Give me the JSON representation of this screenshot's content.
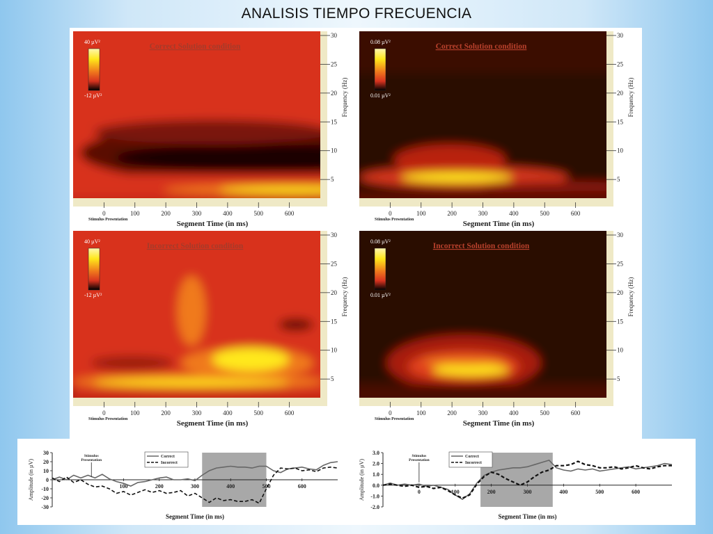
{
  "title": "ANALISIS TIEMPO FRECUENCIA",
  "colors": {
    "heat_dark": "#1a0500",
    "heat_red": "#d8331f",
    "heat_orange": "#f07a1c",
    "heat_yellow": "#ffe81a",
    "erp_shade": "#a8a8a8",
    "line": "#222222"
  },
  "chart_data": [
    {
      "type": "heatmap",
      "title": "Correct Solution condition",
      "xlabel": "Segment Time (in ms)",
      "ylabel": "Frequency (Hz)",
      "x_ticks": [
        "0",
        "100",
        "200",
        "300",
        "400",
        "500",
        "600"
      ],
      "y_ticks": [
        "30",
        "25",
        "20",
        "15",
        "10",
        "5"
      ],
      "xlim": [
        -100,
        700
      ],
      "ylim": [
        2,
        30
      ],
      "stimulus_label": "Stimulus Presentation",
      "colorbar": {
        "max": "40 µV²",
        "min": "-12 µV²"
      }
    },
    {
      "type": "heatmap",
      "title": "Correct Solution condition",
      "xlabel": "Segment Time (in ms)",
      "ylabel": "Frequency (Hz)",
      "x_ticks": [
        "0",
        "100",
        "200",
        "300",
        "400",
        "500",
        "600"
      ],
      "y_ticks": [
        "30",
        "25",
        "20",
        "15",
        "10",
        "5"
      ],
      "xlim": [
        -100,
        700
      ],
      "ylim": [
        2,
        30
      ],
      "stimulus_label": "Stimulus Presentation",
      "colorbar": {
        "max": "0.08 µV²",
        "min": "0.01 µV²"
      }
    },
    {
      "type": "heatmap",
      "title": "Incorrect Solution condition",
      "xlabel": "Segment Time (in ms)",
      "ylabel": "Frequency (Hz)",
      "x_ticks": [
        "0",
        "100",
        "200",
        "300",
        "400",
        "500",
        "600"
      ],
      "y_ticks": [
        "30",
        "25",
        "20",
        "15",
        "10",
        "5"
      ],
      "xlim": [
        -100,
        700
      ],
      "ylim": [
        2,
        30
      ],
      "stimulus_label": "Stimulus Presentation",
      "colorbar": {
        "max": "40 µV²",
        "min": "-12 µV²"
      }
    },
    {
      "type": "heatmap",
      "title": "Incorrect Solution condition",
      "xlabel": "Segment Time (in ms)",
      "ylabel": "Frequency (Hz)",
      "x_ticks": [
        "0",
        "100",
        "200",
        "300",
        "400",
        "500",
        "600"
      ],
      "y_ticks": [
        "30",
        "25",
        "20",
        "15",
        "10",
        "5"
      ],
      "xlim": [
        -100,
        700
      ],
      "ylim": [
        2,
        30
      ],
      "stimulus_label": "Stimulus Presentation",
      "colorbar": {
        "max": "0.08 µV²",
        "min": "0.01 µV²"
      }
    },
    {
      "type": "line",
      "xlabel": "Segment Time (in ms)",
      "ylabel": "Amplitude (in µV)",
      "xlim": [
        -100,
        700
      ],
      "ylim": [
        -30,
        30
      ],
      "y_ticks": [
        "30",
        "20",
        "10",
        "0",
        "-10",
        "-20",
        "-30"
      ],
      "x_tick_labels": [
        {
          "x": 100,
          "label": "100"
        },
        {
          "x": 200,
          "label": "200"
        },
        {
          "x": 300,
          "label": "300"
        },
        {
          "x": 400,
          "label": "400"
        },
        {
          "x": 500,
          "label": "500"
        },
        {
          "x": 600,
          "label": "600"
        }
      ],
      "shaded_range": [
        320,
        500
      ],
      "stimulus_label": "Stimulus Presentation",
      "series": [
        {
          "name": "Correct",
          "style": "solid",
          "x": [
            -100,
            -80,
            -60,
            -40,
            -20,
            0,
            20,
            40,
            60,
            80,
            100,
            120,
            140,
            160,
            180,
            200,
            220,
            240,
            260,
            280,
            300,
            320,
            340,
            360,
            380,
            400,
            420,
            440,
            460,
            480,
            500,
            520,
            540,
            560,
            580,
            600,
            620,
            640,
            660,
            680,
            700
          ],
          "y": [
            0,
            3,
            0,
            5,
            2,
            5,
            2,
            6,
            1,
            -2,
            -4,
            -7,
            -3,
            -2,
            0,
            2,
            3,
            0,
            0,
            1,
            -1,
            5,
            10,
            13,
            14,
            15,
            14,
            14,
            13,
            15,
            15,
            10,
            8,
            12,
            13,
            14,
            12,
            11,
            16,
            19,
            20
          ]
        },
        {
          "name": "Incorrect",
          "style": "dashed",
          "x": [
            -100,
            -80,
            -60,
            -40,
            -20,
            0,
            20,
            40,
            60,
            80,
            100,
            120,
            140,
            160,
            180,
            200,
            220,
            240,
            260,
            280,
            300,
            320,
            340,
            360,
            380,
            400,
            420,
            440,
            460,
            480,
            500,
            520,
            540,
            560,
            580,
            600,
            620,
            640,
            660,
            680,
            700
          ],
          "y": [
            2,
            -2,
            3,
            -3,
            0,
            -5,
            -8,
            -7,
            -10,
            -15,
            -13,
            -17,
            -14,
            -11,
            -14,
            -12,
            -15,
            -14,
            -12,
            -18,
            -15,
            -20,
            -25,
            -20,
            -23,
            -22,
            -24,
            -24,
            -22,
            -26,
            -10,
            5,
            13,
            12,
            13,
            10,
            11,
            9,
            13,
            14,
            13
          ]
        }
      ]
    },
    {
      "type": "line",
      "xlabel": "Segment Time (in ms)",
      "ylabel": "Amplitude (in µV)",
      "xlim": [
        -100,
        700
      ],
      "ylim": [
        -2,
        3
      ],
      "y_ticks": [
        "3.0",
        "2.0",
        "1.0",
        "0.0",
        "-1.0",
        "-2.0"
      ],
      "x_tick_labels": [
        {
          "x": 0,
          "label": "0"
        },
        {
          "x": 100,
          "label": "100"
        },
        {
          "x": 200,
          "label": "200"
        },
        {
          "x": 300,
          "label": "300"
        },
        {
          "x": 400,
          "label": "400"
        },
        {
          "x": 500,
          "label": "500"
        },
        {
          "x": 600,
          "label": "600"
        }
      ],
      "shaded_range": [
        170,
        370
      ],
      "stimulus_label": "Stimulus Presentation",
      "series": [
        {
          "name": "Correct",
          "style": "solid",
          "x": [
            -100,
            -80,
            -60,
            -40,
            -20,
            0,
            20,
            40,
            60,
            80,
            100,
            120,
            140,
            160,
            180,
            200,
            220,
            240,
            260,
            280,
            300,
            320,
            340,
            360,
            380,
            400,
            420,
            440,
            460,
            480,
            500,
            520,
            540,
            560,
            580,
            600,
            620,
            640,
            660,
            680,
            700
          ],
          "y": [
            0,
            0.2,
            0,
            0.1,
            0,
            0.1,
            -0.1,
            0,
            -0.2,
            -0.4,
            -0.9,
            -1.3,
            -0.8,
            0.2,
            0.9,
            1.2,
            1.4,
            1.5,
            1.6,
            1.6,
            1.7,
            1.9,
            2.1,
            2.3,
            1.6,
            1.4,
            1.3,
            1.5,
            1.4,
            1.5,
            1.3,
            1.4,
            1.5,
            1.6,
            1.7,
            1.5,
            1.6,
            1.7,
            1.8,
            2.0,
            1.9
          ]
        },
        {
          "name": "Incorrect",
          "style": "dashed",
          "x": [
            -100,
            -80,
            -60,
            -40,
            -20,
            0,
            20,
            40,
            60,
            80,
            100,
            120,
            140,
            160,
            180,
            200,
            220,
            240,
            260,
            280,
            300,
            320,
            340,
            360,
            380,
            400,
            420,
            440,
            460,
            480,
            500,
            520,
            540,
            560,
            580,
            600,
            620,
            640,
            660,
            680,
            700
          ],
          "y": [
            0,
            0.1,
            0,
            -0.1,
            0,
            -0.2,
            -0.1,
            -0.3,
            -0.2,
            -0.5,
            -0.9,
            -1.2,
            -0.9,
            0.1,
            0.8,
            1.2,
            1.0,
            0.6,
            0.3,
            0.0,
            0.3,
            0.8,
            1.2,
            1.4,
            1.8,
            1.8,
            1.9,
            2.2,
            1.9,
            1.8,
            1.6,
            1.6,
            1.7,
            1.5,
            1.6,
            1.8,
            1.6,
            1.5,
            1.7,
            1.8,
            1.8
          ]
        }
      ]
    }
  ]
}
